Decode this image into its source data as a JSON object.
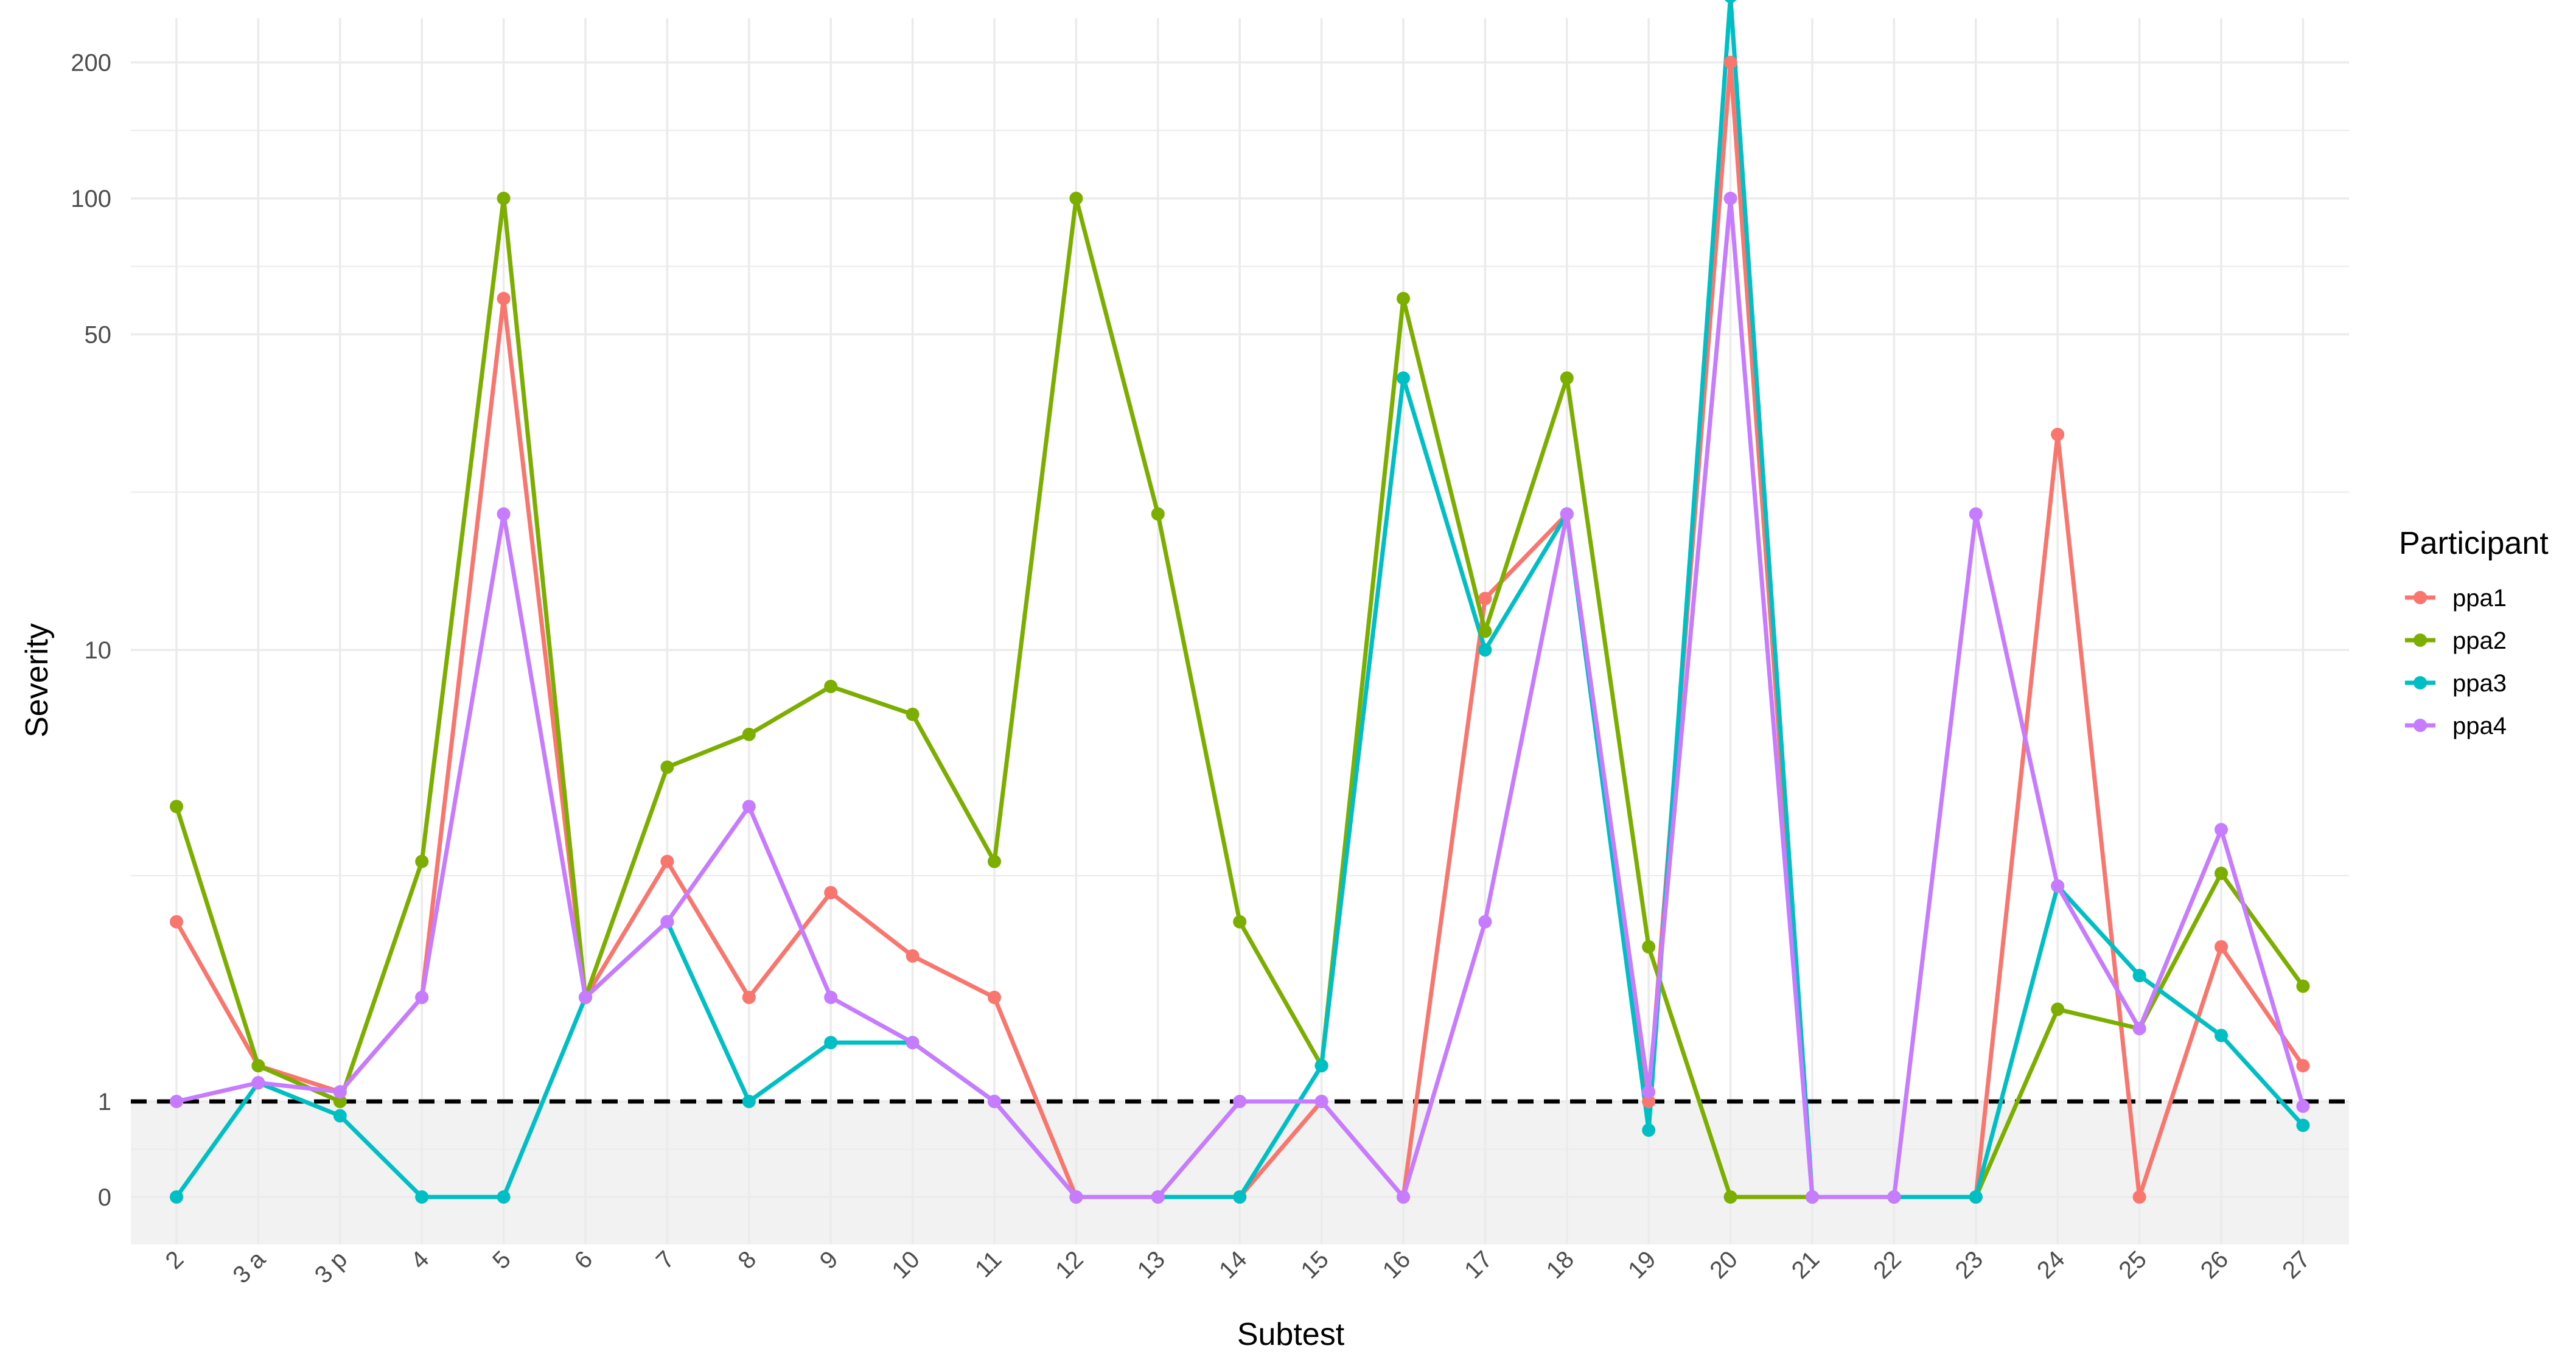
{
  "chart_data": {
    "type": "line",
    "xlabel": "Subtest",
    "ylabel": "Severity",
    "y_scale": "pseudo-log",
    "y_ticks": [
      0,
      1,
      10,
      50,
      100,
      200
    ],
    "y_tick_labels": [
      "0",
      "1",
      "10",
      "50",
      "100",
      "200"
    ],
    "reference_line": {
      "y": 1,
      "style": "dashed",
      "color": "#000000"
    },
    "shaded_band": {
      "from": 0,
      "to": 1,
      "color": "#f2f2f2"
    },
    "grid": true,
    "legend": {
      "title": "Participant",
      "placement": "right"
    },
    "categories": [
      "2",
      "3 a",
      "3 p",
      "4",
      "5",
      "6",
      "7",
      "8",
      "9",
      "10",
      "11",
      "12",
      "13",
      "14",
      "15",
      "16",
      "17",
      "18",
      "19",
      "20",
      "21",
      "22",
      "23",
      "24",
      "25",
      "26",
      "27"
    ],
    "series": [
      {
        "name": "ppa1",
        "color": "#f8766d",
        "values": [
          2.5,
          1.2,
          1.05,
          1.7,
          60,
          1.7,
          3.4,
          1.7,
          2.9,
          2.1,
          1.7,
          0,
          0,
          0,
          1.0,
          0,
          13,
          20,
          1.0,
          200,
          0,
          0,
          0,
          30,
          0,
          2.2,
          1.2
        ]
      },
      {
        "name": "ppa2",
        "color": "#7cae00",
        "values": [
          4.5,
          1.2,
          1.0,
          3.4,
          100,
          1.7,
          5.5,
          6.5,
          8.3,
          7.2,
          3.4,
          100,
          20,
          2.5,
          1.2,
          60,
          11,
          40,
          2.2,
          0,
          0,
          0,
          0,
          1.6,
          1.45,
          3.2,
          1.8
        ]
      },
      {
        "name": "ppa3",
        "color": "#00bfc4",
        "values": [
          0,
          1.1,
          0.85,
          0,
          0,
          1.7,
          2.5,
          1.0,
          1.35,
          1.35,
          1.0,
          0,
          0,
          0,
          1.2,
          40,
          10,
          20,
          0.7,
          280,
          0,
          0,
          0,
          3.0,
          1.9,
          1.4,
          0.75
        ]
      },
      {
        "name": "ppa4",
        "color": "#c77cff",
        "values": [
          1.0,
          1.1,
          1.05,
          1.7,
          20,
          1.7,
          2.5,
          4.5,
          1.7,
          1.35,
          1.0,
          0,
          0,
          1.0,
          1.0,
          0,
          2.5,
          20,
          1.05,
          100,
          0,
          0,
          20,
          3.0,
          1.45,
          4.0,
          0.95
        ]
      }
    ]
  }
}
